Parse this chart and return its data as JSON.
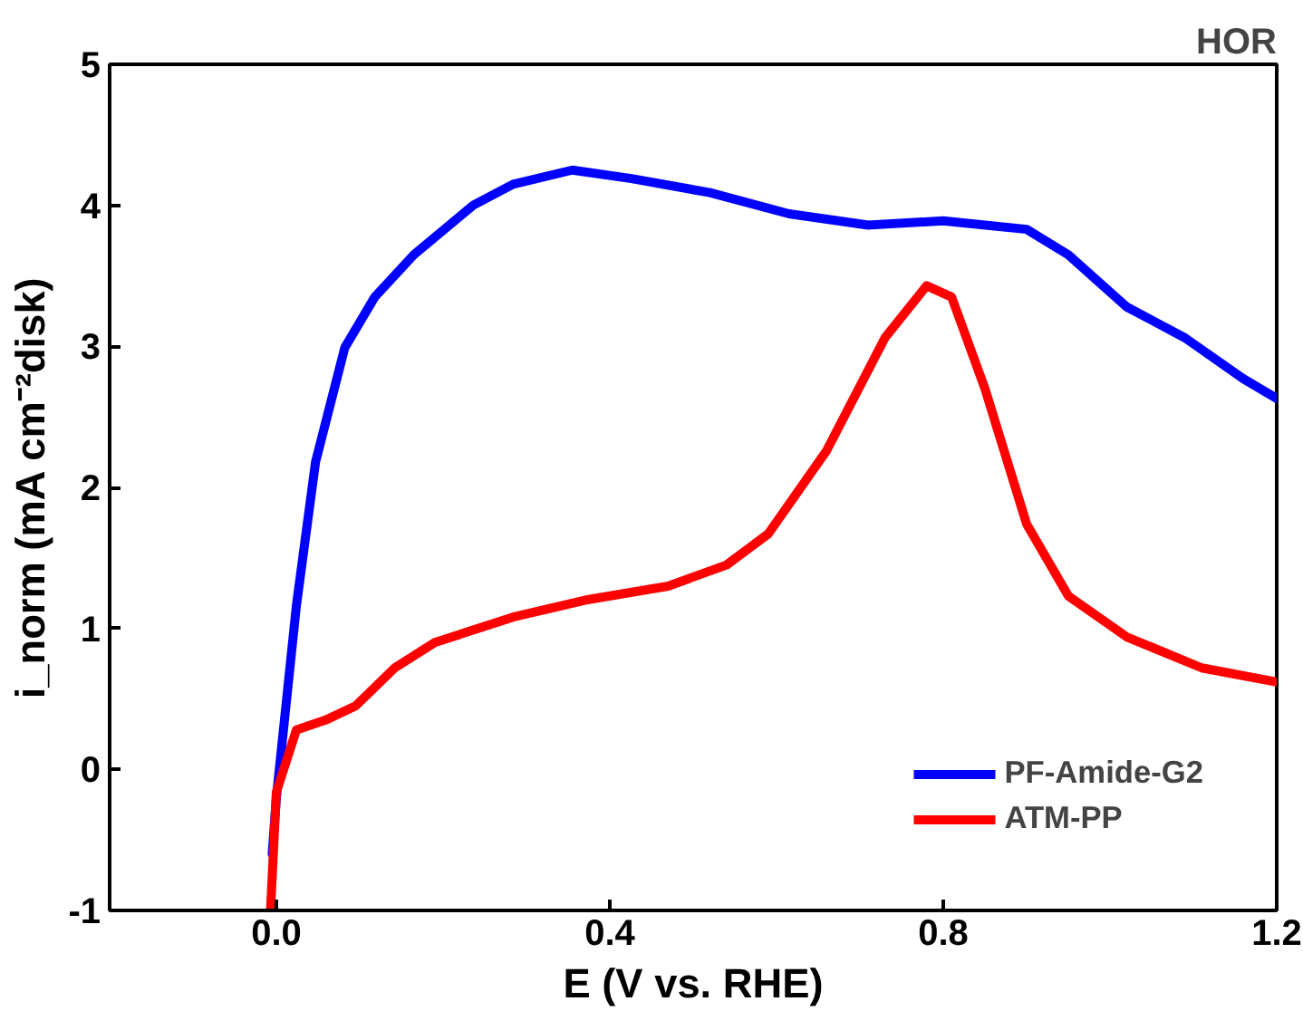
{
  "chart_data": {
    "type": "line",
    "xlabel": "E (V vs. RHE)",
    "ylabel": "i_norm (mA cm⁻²disk)",
    "annotations": [
      "HOR"
    ],
    "xlim": [
      -0.2,
      1.2
    ],
    "ylim": [
      -1,
      5
    ],
    "xticks": [
      {
        "value": 0,
        "label": "0.0"
      },
      0.4,
      0.8,
      1.2
    ],
    "yticks": [
      -1,
      0,
      1,
      2,
      3,
      4,
      5
    ],
    "grid": false,
    "legend": "bottom right",
    "marker": "none",
    "line_style": "solid",
    "series": [
      {
        "name": "PF-Amide-G2",
        "color": "#0000ff",
        "x": [
          -0.005,
          0.0,
          0.024,
          0.047,
          0.082,
          0.118,
          0.165,
          0.236,
          0.284,
          0.355,
          0.426,
          0.52,
          0.615,
          0.71,
          0.8,
          0.9,
          0.95,
          1.02,
          1.09,
          1.16,
          1.2
        ],
        "values": [
          -0.6,
          -0.2,
          1.16,
          2.18,
          2.99,
          3.35,
          3.65,
          4.0,
          4.15,
          4.25,
          4.19,
          4.09,
          3.94,
          3.86,
          3.89,
          3.83,
          3.65,
          3.28,
          3.06,
          2.77,
          2.63
        ]
      },
      {
        "name": "ATM-PP",
        "color": "#ff0000",
        "x": [
          -0.007,
          0.0,
          0.024,
          0.059,
          0.095,
          0.142,
          0.19,
          0.284,
          0.37,
          0.47,
          0.54,
          0.59,
          0.66,
          0.73,
          0.78,
          0.81,
          0.85,
          0.9,
          0.95,
          1.02,
          1.11,
          1.2
        ],
        "values": [
          -1,
          -0.16,
          0.28,
          0.35,
          0.45,
          0.72,
          0.9,
          1.08,
          1.2,
          1.3,
          1.45,
          1.67,
          2.26,
          3.06,
          3.43,
          3.35,
          2.7,
          1.74,
          1.23,
          0.94,
          0.72,
          0.62
        ]
      }
    ]
  }
}
